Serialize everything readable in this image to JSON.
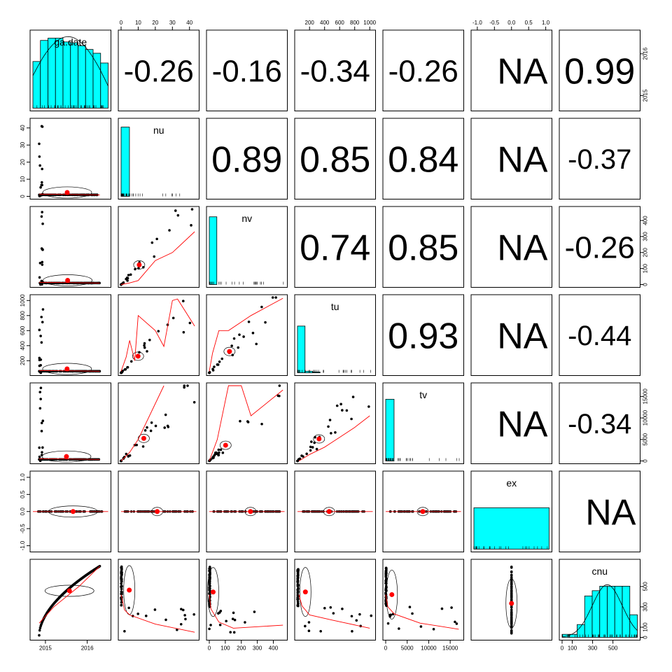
{
  "chart_data": {
    "type": "scatter",
    "subtype": "pairs-panels matrix (histograms on diagonal, scatterplots with loess + correlation ellipse below, correlation coefficients above)",
    "variables": [
      "ga.date",
      "nu",
      "nv",
      "tu",
      "tv",
      "ex",
      "cnu"
    ],
    "correlations": [
      {
        "row": "ga.date",
        "col": "nu",
        "value": "-0.26"
      },
      {
        "row": "ga.date",
        "col": "nv",
        "value": "-0.16"
      },
      {
        "row": "ga.date",
        "col": "tu",
        "value": "-0.34"
      },
      {
        "row": "ga.date",
        "col": "tv",
        "value": "-0.26"
      },
      {
        "row": "ga.date",
        "col": "ex",
        "value": "NA"
      },
      {
        "row": "ga.date",
        "col": "cnu",
        "value": "0.99"
      },
      {
        "row": "nu",
        "col": "nv",
        "value": "0.89"
      },
      {
        "row": "nu",
        "col": "tu",
        "value": "0.85"
      },
      {
        "row": "nu",
        "col": "tv",
        "value": "0.84"
      },
      {
        "row": "nu",
        "col": "ex",
        "value": "NA"
      },
      {
        "row": "nu",
        "col": "cnu",
        "value": "-0.37"
      },
      {
        "row": "nv",
        "col": "tu",
        "value": "0.74"
      },
      {
        "row": "nv",
        "col": "tv",
        "value": "0.85"
      },
      {
        "row": "nv",
        "col": "ex",
        "value": "NA"
      },
      {
        "row": "nv",
        "col": "cnu",
        "value": "-0.26"
      },
      {
        "row": "tu",
        "col": "tv",
        "value": "0.93"
      },
      {
        "row": "tu",
        "col": "ex",
        "value": "NA"
      },
      {
        "row": "tu",
        "col": "cnu",
        "value": "-0.44"
      },
      {
        "row": "tv",
        "col": "ex",
        "value": "NA"
      },
      {
        "row": "tv",
        "col": "cnu",
        "value": "-0.34"
      },
      {
        "row": "ex",
        "col": "cnu",
        "value": "NA"
      }
    ],
    "axes": {
      "top": [
        {
          "var": "nu",
          "ticks": [
            "0",
            "10",
            "20",
            "30",
            "40"
          ]
        },
        {
          "var": "tu",
          "ticks": [
            "200",
            "400",
            "600",
            "800",
            "1000"
          ]
        },
        {
          "var": "ex",
          "ticks": [
            "-1.0",
            "-0.5",
            "0.0",
            "0.5",
            "1.0"
          ]
        }
      ],
      "bottom": [
        {
          "var": "ga.date",
          "ticks": [
            "2015",
            "2016"
          ]
        },
        {
          "var": "nv",
          "ticks": [
            "0",
            "100",
            "200",
            "300",
            "400"
          ]
        },
        {
          "var": "tv",
          "ticks": [
            "0",
            "5000",
            "10000",
            "15000"
          ]
        },
        {
          "var": "cnu",
          "ticks": [
            "0",
            "100",
            "300",
            "500"
          ]
        }
      ],
      "left": [
        {
          "var": "nu",
          "ticks": [
            "0",
            "10",
            "20",
            "30",
            "40"
          ]
        },
        {
          "var": "tu",
          "ticks": [
            "200",
            "400",
            "600",
            "800",
            "1000"
          ]
        },
        {
          "var": "ex",
          "ticks": [
            "-1.0",
            "-0.5",
            "0.0",
            "0.5",
            "1.0"
          ]
        }
      ],
      "right": [
        {
          "var": "ga.date",
          "ticks": [
            "2015",
            "2016"
          ]
        },
        {
          "var": "nv",
          "ticks": [
            "0",
            "100",
            "200",
            "300",
            "400"
          ]
        },
        {
          "var": "tv",
          "ticks": [
            "0",
            "5000",
            "10000",
            "15000"
          ]
        },
        {
          "var": "cnu",
          "ticks": [
            "0",
            "100",
            "300",
            "500"
          ]
        }
      ]
    },
    "ranges": {
      "ga.date": [
        2014.7,
        2016.5
      ],
      "nu": [
        0,
        44
      ],
      "nv": [
        0,
        470
      ],
      "tu": [
        40,
        1040
      ],
      "tv": [
        0,
        17500
      ],
      "ex": [
        -1.1,
        1.1
      ],
      "cnu": [
        0,
        740
      ]
    },
    "histograms": {
      "ga.date": [
        0.62,
        0.9,
        0.93,
        0.93,
        0.88,
        0.87,
        0.83,
        0.78,
        0.73,
        0.6
      ],
      "nu": [
        0.92,
        0.0,
        0.0,
        0.0,
        0.0,
        0.0,
        0.0,
        0.0,
        0.0
      ],
      "nv": [
        0.9,
        0.0,
        0.0,
        0.0,
        0.0,
        0.0,
        0.0,
        0.0,
        0.0,
        0.0
      ],
      "tu": [
        0.62,
        0.02,
        0.01,
        0.0,
        0.0,
        0.0,
        0.0,
        0.0,
        0.0,
        0.0
      ],
      "tv": [
        0.82,
        0.0,
        0.0,
        0.0,
        0.0,
        0.0,
        0.0,
        0.0,
        0.0
      ],
      "ex": [
        0.55
      ],
      "cnu": [
        0.04,
        0.04,
        0.17,
        0.55,
        0.62,
        0.68,
        0.68,
        0.68,
        0.68,
        0.3
      ]
    },
    "fit_lines": {
      "nu_nv": [
        [
          0,
          0
        ],
        [
          5,
          10
        ],
        [
          10,
          25
        ],
        [
          20,
          150
        ],
        [
          30,
          200
        ],
        [
          43,
          330
        ]
      ],
      "nu_tu": [
        [
          0,
          60
        ],
        [
          3,
          250
        ],
        [
          5,
          470
        ],
        [
          8,
          200
        ],
        [
          10,
          800
        ],
        [
          20,
          600
        ],
        [
          25,
          390
        ],
        [
          30,
          1000
        ],
        [
          33,
          1020
        ],
        [
          43,
          660
        ]
      ],
      "nv_tu": [
        [
          0,
          60
        ],
        [
          20,
          300
        ],
        [
          60,
          600
        ],
        [
          120,
          600
        ],
        [
          260,
          800
        ],
        [
          460,
          1030
        ]
      ],
      "nu_tv": [
        [
          0,
          0
        ],
        [
          5,
          2000
        ],
        [
          10,
          5000
        ],
        [
          25,
          17500
        ]
      ],
      "nv_tv": [
        [
          0,
          0
        ],
        [
          50,
          5000
        ],
        [
          120,
          17500
        ],
        [
          200,
          17500
        ],
        [
          260,
          10500
        ],
        [
          460,
          16500
        ]
      ],
      "tu_tv": [
        [
          60,
          0
        ],
        [
          200,
          1500
        ],
        [
          400,
          3200
        ],
        [
          600,
          5500
        ],
        [
          800,
          7800
        ],
        [
          1000,
          10500
        ]
      ],
      "nu_cnu": [
        [
          0,
          420
        ],
        [
          2,
          270
        ],
        [
          5,
          220
        ],
        [
          20,
          130
        ],
        [
          43,
          50
        ]
      ],
      "nv_cnu": [
        [
          0,
          420
        ],
        [
          10,
          280
        ],
        [
          60,
          150
        ],
        [
          150,
          90
        ],
        [
          460,
          120
        ]
      ],
      "tu_cnu": [
        [
          60,
          420
        ],
        [
          100,
          310
        ],
        [
          200,
          220
        ],
        [
          500,
          170
        ],
        [
          1000,
          90
        ]
      ],
      "tv_cnu": [
        [
          0,
          420
        ],
        [
          500,
          300
        ],
        [
          2000,
          230
        ],
        [
          8000,
          140
        ],
        [
          17000,
          80
        ]
      ]
    }
  }
}
